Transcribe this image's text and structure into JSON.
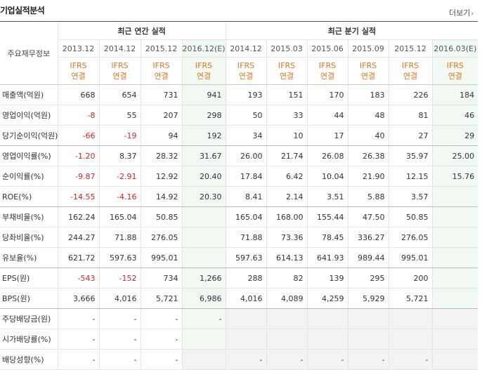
{
  "title": "기업실적분석",
  "more_label": "더보기",
  "more_arrow": "›",
  "header": {
    "label_col": "주요재무정보",
    "annual_group": "최근 연간 실적",
    "quarter_group": "최근 분기 실적",
    "periods": [
      "2013.12",
      "2014.12",
      "2015.12",
      "2016.12(E)",
      "2014.12",
      "2015.03",
      "2015.06",
      "2015.09",
      "2015.12",
      "2016.03(E)"
    ],
    "ifrs_top": "IFRS",
    "ifrs_bottom": "연결"
  },
  "rows": [
    {
      "label": "매출액(억원)",
      "values": [
        "668",
        "654",
        "731",
        "941",
        "193",
        "151",
        "170",
        "183",
        "226",
        "184"
      ]
    },
    {
      "label": "영업이익(억원)",
      "values": [
        "-8",
        "55",
        "207",
        "298",
        "50",
        "33",
        "44",
        "48",
        "81",
        "46"
      ]
    },
    {
      "label": "당기순이익(억원)",
      "values": [
        "-66",
        "-19",
        "94",
        "192",
        "34",
        "10",
        "17",
        "40",
        "27",
        "29"
      ]
    },
    {
      "label": "영업이익률(%)",
      "values": [
        "-1.20",
        "8.37",
        "28.32",
        "31.67",
        "26.00",
        "21.74",
        "26.08",
        "26.38",
        "35.97",
        "25.00"
      ]
    },
    {
      "label": "순이익률(%)",
      "values": [
        "-9.87",
        "-2.91",
        "12.92",
        "20.40",
        "17.84",
        "6.42",
        "10.04",
        "21.90",
        "12.15",
        "15.76"
      ]
    },
    {
      "label": "ROE(%)",
      "values": [
        "-14.55",
        "-4.16",
        "14.92",
        "20.30",
        "8.41",
        "2.14",
        "3.51",
        "5.88",
        "3.57",
        ""
      ]
    },
    {
      "label": "부채비율(%)",
      "values": [
        "162.24",
        "165.04",
        "50.85",
        "",
        "165.04",
        "168.00",
        "155.44",
        "47.50",
        "50.85",
        ""
      ]
    },
    {
      "label": "당좌비율(%)",
      "values": [
        "244.27",
        "71.88",
        "276.05",
        "",
        "71.88",
        "73.36",
        "78.45",
        "336.27",
        "276.05",
        ""
      ]
    },
    {
      "label": "유보율(%)",
      "values": [
        "621.72",
        "597.63",
        "995.01",
        "",
        "597.63",
        "614.13",
        "641.93",
        "989.44",
        "995.01",
        ""
      ]
    },
    {
      "label": "EPS(원)",
      "values": [
        "-543",
        "-152",
        "734",
        "1,266",
        "288",
        "82",
        "139",
        "295",
        "200",
        ""
      ]
    },
    {
      "label": "BPS(원)",
      "values": [
        "3,666",
        "4,016",
        "5,721",
        "6,986",
        "4,016",
        "4,089",
        "4,259",
        "5,929",
        "5,721",
        ""
      ]
    },
    {
      "label": "주당배당금(원)",
      "values": [
        "-",
        "-",
        "-",
        "-",
        "",
        "",
        "",
        "",
        "",
        ""
      ]
    },
    {
      "label": "시가배당률(%)",
      "values": [
        "-",
        "-",
        "-",
        "",
        "",
        "",
        "",
        "",
        "",
        ""
      ]
    },
    {
      "label": "배당성향(%)",
      "values": [
        "-",
        "-",
        "-",
        "",
        "-",
        "-",
        "-",
        "-",
        "-",
        ""
      ]
    }
  ]
}
